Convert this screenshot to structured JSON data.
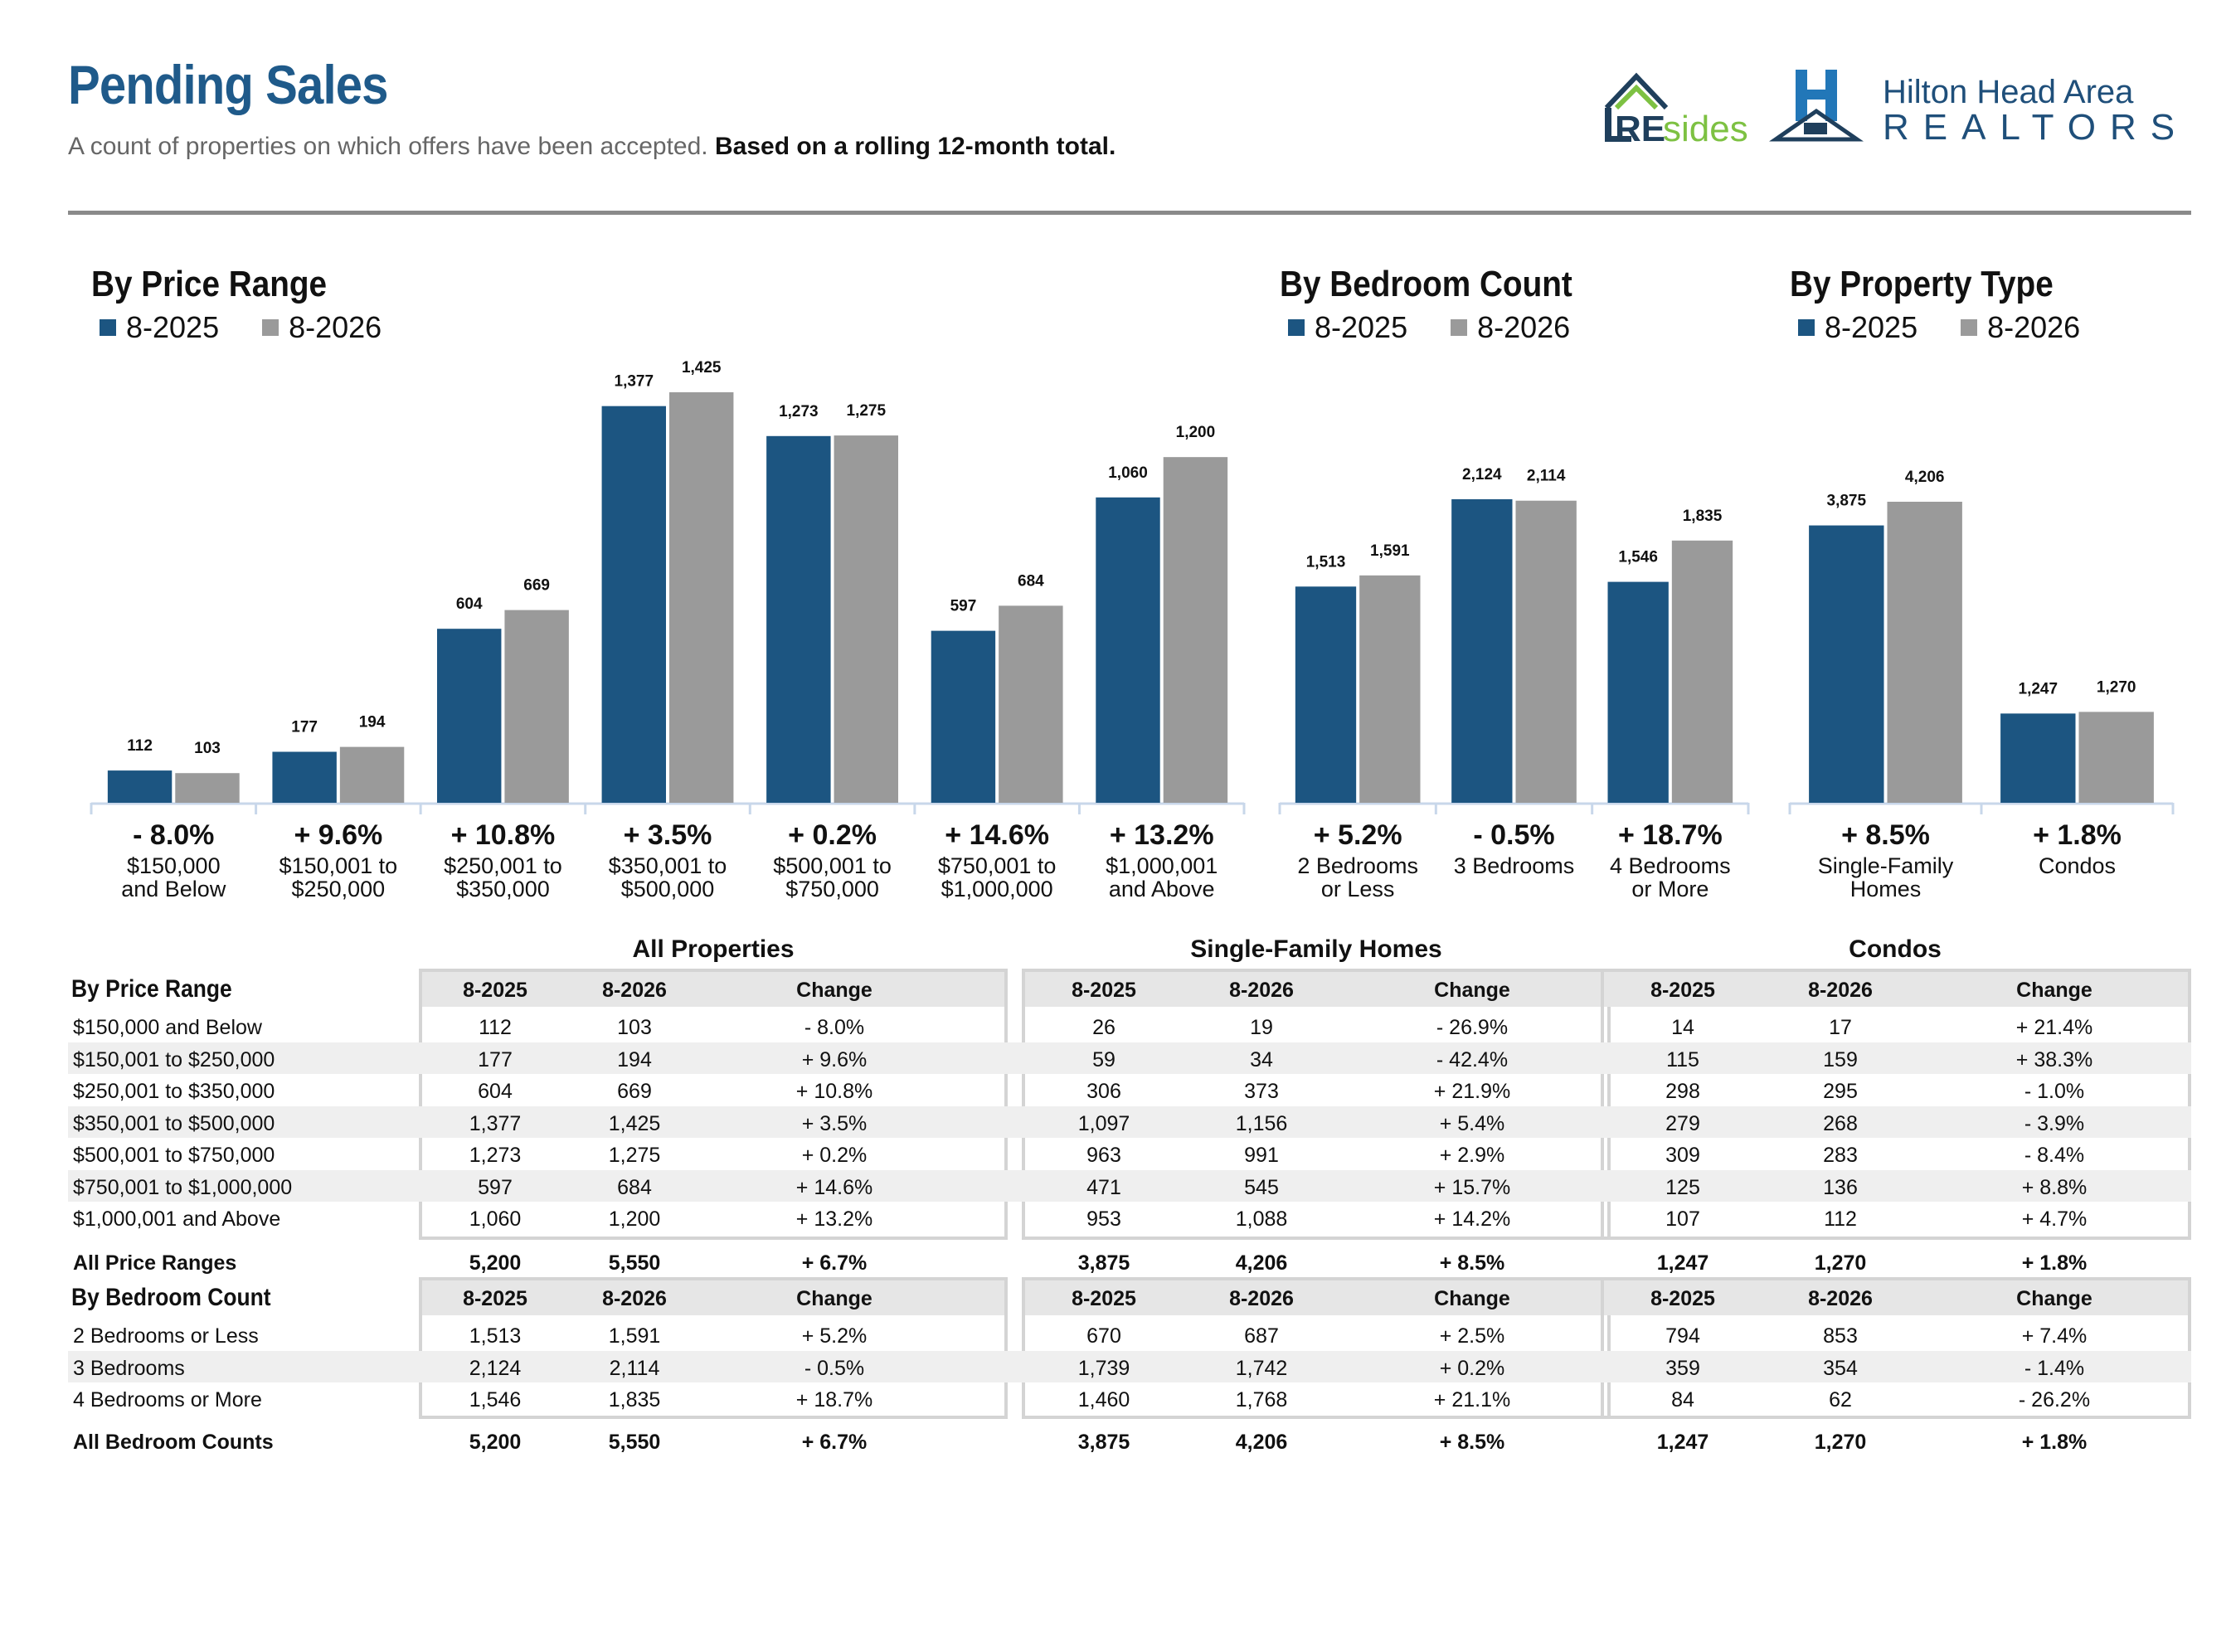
{
  "header": {
    "title": "Pending Sales",
    "subtitle_plain": "A count of properties on which offers have been accepted.",
    "subtitle_bold": "Based on a rolling 12-month total.",
    "logo_left_text": "REsides",
    "logo_right_line1": "Hilton Head Area",
    "logo_right_line2": "REALTORS"
  },
  "colors": {
    "series_2025": "#1c5581",
    "series_2026": "#9a9a9a",
    "title": "#1f5a8a",
    "axis": "#c8d7ea"
  },
  "legend": {
    "s1": "8-2025",
    "s2": "8-2026"
  },
  "chart_data": [
    {
      "type": "bar",
      "title": "By Price Range",
      "categories": [
        "$150,000\nand Below",
        "$150,001 to\n$250,000",
        "$250,001 to\n$350,000",
        "$350,001 to\n$500,000",
        "$500,001 to\n$750,000",
        "$750,001 to\n$1,000,000",
        "$1,000,001\nand Above"
      ],
      "series": [
        {
          "name": "8-2025",
          "values": [
            112,
            177,
            604,
            1377,
            1273,
            597,
            1060
          ]
        },
        {
          "name": "8-2026",
          "values": [
            103,
            194,
            669,
            1425,
            1275,
            684,
            1200
          ]
        }
      ],
      "changes": [
        "- 8.0%",
        "+ 9.6%",
        "+ 10.8%",
        "+ 3.5%",
        "+ 0.2%",
        "+ 14.6%",
        "+ 13.2%"
      ],
      "legend_position": "top-left"
    },
    {
      "type": "bar",
      "title": "By Bedroom Count",
      "categories": [
        "2 Bedrooms\nor Less",
        "3 Bedrooms",
        "4 Bedrooms\nor More"
      ],
      "series": [
        {
          "name": "8-2025",
          "values": [
            1513,
            2124,
            1546
          ]
        },
        {
          "name": "8-2026",
          "values": [
            1591,
            2114,
            1835
          ]
        }
      ],
      "changes": [
        "+ 5.2%",
        "- 0.5%",
        "+ 18.7%"
      ],
      "legend_position": "top-left"
    },
    {
      "type": "bar",
      "title": "By Property Type",
      "categories": [
        "Single-Family\nHomes",
        "Condos"
      ],
      "series": [
        {
          "name": "8-2025",
          "values": [
            3875,
            1247
          ]
        },
        {
          "name": "8-2026",
          "values": [
            4206,
            1270
          ]
        }
      ],
      "changes": [
        "+ 8.5%",
        "+ 1.8%"
      ],
      "legend_position": "top-left"
    }
  ],
  "tables": {
    "groups": [
      "All Properties",
      "Single-Family Homes",
      "Condos"
    ],
    "col_headers": [
      "8-2025",
      "8-2026",
      "Change"
    ],
    "price": {
      "title": "By Price Range",
      "rows": [
        {
          "label": "$150,000 and Below",
          "v": [
            "112",
            "103",
            "- 8.0%",
            "26",
            "19",
            "- 26.9%",
            "14",
            "17",
            "+ 21.4%"
          ]
        },
        {
          "label": "$150,001 to $250,000",
          "v": [
            "177",
            "194",
            "+ 9.6%",
            "59",
            "34",
            "- 42.4%",
            "115",
            "159",
            "+ 38.3%"
          ]
        },
        {
          "label": "$250,001 to $350,000",
          "v": [
            "604",
            "669",
            "+ 10.8%",
            "306",
            "373",
            "+ 21.9%",
            "298",
            "295",
            "- 1.0%"
          ]
        },
        {
          "label": "$350,001 to $500,000",
          "v": [
            "1,377",
            "1,425",
            "+ 3.5%",
            "1,097",
            "1,156",
            "+ 5.4%",
            "279",
            "268",
            "- 3.9%"
          ]
        },
        {
          "label": "$500,001 to $750,000",
          "v": [
            "1,273",
            "1,275",
            "+ 0.2%",
            "963",
            "991",
            "+ 2.9%",
            "309",
            "283",
            "- 8.4%"
          ]
        },
        {
          "label": "$750,001 to $1,000,000",
          "v": [
            "597",
            "684",
            "+ 14.6%",
            "471",
            "545",
            "+ 15.7%",
            "125",
            "136",
            "+ 8.8%"
          ]
        },
        {
          "label": "$1,000,001 and Above",
          "v": [
            "1,060",
            "1,200",
            "+ 13.2%",
            "953",
            "1,088",
            "+ 14.2%",
            "107",
            "112",
            "+ 4.7%"
          ]
        }
      ],
      "total": {
        "label": "All Price Ranges",
        "v": [
          "5,200",
          "5,550",
          "+ 6.7%",
          "3,875",
          "4,206",
          "+ 8.5%",
          "1,247",
          "1,270",
          "+ 1.8%"
        ]
      }
    },
    "bed": {
      "title": "By Bedroom Count",
      "rows": [
        {
          "label": "2 Bedrooms or Less",
          "v": [
            "1,513",
            "1,591",
            "+ 5.2%",
            "670",
            "687",
            "+ 2.5%",
            "794",
            "853",
            "+ 7.4%"
          ]
        },
        {
          "label": "3 Bedrooms",
          "v": [
            "2,124",
            "2,114",
            "- 0.5%",
            "1,739",
            "1,742",
            "+ 0.2%",
            "359",
            "354",
            "- 1.4%"
          ]
        },
        {
          "label": "4 Bedrooms or More",
          "v": [
            "1,546",
            "1,835",
            "+ 18.7%",
            "1,460",
            "1,768",
            "+ 21.1%",
            "84",
            "62",
            "- 26.2%"
          ]
        }
      ],
      "total": {
        "label": "All Bedroom Counts",
        "v": [
          "5,200",
          "5,550",
          "+ 6.7%",
          "3,875",
          "4,206",
          "+ 8.5%",
          "1,247",
          "1,270",
          "+ 1.8%"
        ]
      }
    }
  }
}
